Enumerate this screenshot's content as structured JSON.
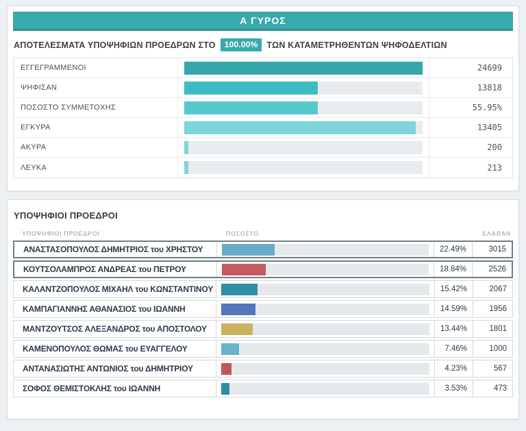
{
  "round_banner": {
    "label": "Α ΓΥΡΟΣ",
    "color": "#3aa9ac"
  },
  "subtitle": {
    "prefix": "ΑΠΟΤΕΛΕΣΜΑΤΑ ΥΠΟΨΗΦΙΩΝ ΠΡΟΕΔΡΩΝ ΣΤΟ",
    "badge": "100.00%",
    "suffix": "ΤΩΝ ΚΑΤΑΜΕΤΡΗΘΕΝΤΩΝ ΨΗΦΟΔΕΛΤΙΩΝ"
  },
  "stats": {
    "rows": [
      {
        "label": "ΕΓΓΕΓΡΑΜΜΕΝΟΙ",
        "value": "24699",
        "bar_pct": 100,
        "bar_color": "#35a7aa"
      },
      {
        "label": "ΨΗΦΙΣΑΝ",
        "value": "13818",
        "bar_pct": 55.95,
        "bar_color": "#3cbcc2"
      },
      {
        "label": "ΠΟΣΟΣΤΟ ΣΥΜΜΕΤΟΧΗΣ",
        "value": "55.95%",
        "bar_pct": 55.95,
        "bar_color": "#58c8cd"
      },
      {
        "label": "ΕΓΚΥΡΑ",
        "value": "13405",
        "bar_pct": 97,
        "bar_color": "#7ed5d9"
      },
      {
        "label": "ΑΚΥΡΑ",
        "value": "200",
        "bar_pct": 1.6,
        "bar_color": "#7ed5d9"
      },
      {
        "label": "ΛΕΥΚΑ",
        "value": "213",
        "bar_pct": 1.7,
        "bar_color": "#7ed5d9"
      }
    ]
  },
  "candidates": {
    "title": "ΥΠΟΨΗΦΙΟΙ ΠΡΟΕΔΡΟΙ",
    "headers": {
      "name": "ΥΠΟΨΗΦΙΟΙ ΠΡΟΕΔΡΟΙ",
      "percent": "ΠΟΣΟΣΤΟ",
      "votes": "ΕΛΑΒΑΝ"
    },
    "bar_scale_pct_to_track": 1.13,
    "rows": [
      {
        "name": "ΑΝΑΣΤΑΣΟΠΟΥΛΟΣ ΔΗΜΗΤΡΙΟΣ του ΧΡΗΣΤΟΥ",
        "percent": "22.49%",
        "pct": 22.49,
        "votes": "3015",
        "bar_color": "#68abc9",
        "highlighted": true
      },
      {
        "name": "ΚΟΥΤΣΟΛΑΜΠΡΟΣ ΑΝΔΡΕΑΣ του ΠΕΤΡΟΥ",
        "percent": "18.84%",
        "pct": 18.84,
        "votes": "2526",
        "bar_color": "#c45b5e",
        "highlighted": true
      },
      {
        "name": "ΚΑΛΑΝΤΖΟΠΟΥΛΟΣ ΜΙΧΑΗΛ του ΚΩΝΣΤΑΝΤΙΝΟΥ",
        "percent": "15.42%",
        "pct": 15.42,
        "votes": "2067",
        "bar_color": "#2e8fa3",
        "highlighted": false
      },
      {
        "name": "ΚΑΜΠΑΓΙΑΝΝΗΣ ΑΘΑΝΑΣΙΟΣ του ΙΩΑΝΝΗ",
        "percent": "14.59%",
        "pct": 14.59,
        "votes": "1956",
        "bar_color": "#5277bd",
        "highlighted": false
      },
      {
        "name": "ΜΑΝΤΖΟΥΤΣΟΣ ΑΛΕΞΑΝΔΡΟΣ του ΑΠΟΣΤΟΛΟΥ",
        "percent": "13.44%",
        "pct": 13.44,
        "votes": "1801",
        "bar_color": "#c9b35c",
        "highlighted": false
      },
      {
        "name": "ΚΑΜΕΝΟΠΟΥΛΟΣ ΘΩΜΑΣ του ΕΥΑΓΓΕΛΟΥ",
        "percent": "7.46%",
        "pct": 7.46,
        "votes": "1000",
        "bar_color": "#68b2cc",
        "highlighted": false
      },
      {
        "name": "ΑΝΤΑΝΑΣΙΩΤΗΣ ΑΝΤΩΝΙΟΣ του ΔΗΜΗΤΡΙΟΥ",
        "percent": "4.23%",
        "pct": 4.23,
        "votes": "567",
        "bar_color": "#c4555a",
        "highlighted": false
      },
      {
        "name": "ΣΟΦΟΣ ΘΕΜΙΣΤΟΚΛΗΣ του ΙΩΑΝΝΗ",
        "percent": "3.53%",
        "pct": 3.53,
        "votes": "473",
        "bar_color": "#2e8fa3",
        "highlighted": false
      }
    ]
  }
}
